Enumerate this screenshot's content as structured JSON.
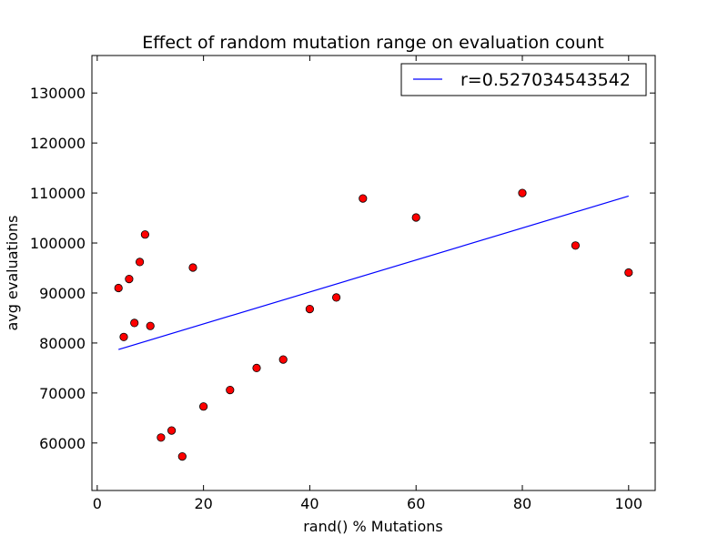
{
  "chart_data": {
    "type": "scatter",
    "title": "Effect of random mutation range on evaluation count",
    "xlabel": "rand() % Mutations",
    "ylabel": "avg evaluations",
    "xlim": [
      -1,
      105
    ],
    "ylim": [
      50500,
      137500
    ],
    "xticks": [
      0,
      20,
      40,
      60,
      80,
      100
    ],
    "yticks": [
      60000,
      70000,
      80000,
      90000,
      100000,
      110000,
      120000,
      130000
    ],
    "grid": false,
    "legend_position": "top-right",
    "series": [
      {
        "kind": "points",
        "marker_color": "#ff0000",
        "points": [
          {
            "x": 4,
            "y": 91000
          },
          {
            "x": 5,
            "y": 81200
          },
          {
            "x": 6,
            "y": 92800
          },
          {
            "x": 7,
            "y": 84000
          },
          {
            "x": 8,
            "y": 96200
          },
          {
            "x": 9,
            "y": 101700
          },
          {
            "x": 10,
            "y": 83400
          },
          {
            "x": 12,
            "y": 61100
          },
          {
            "x": 14,
            "y": 62500
          },
          {
            "x": 16,
            "y": 57300
          },
          {
            "x": 18,
            "y": 95100
          },
          {
            "x": 20,
            "y": 67300
          },
          {
            "x": 25,
            "y": 70600
          },
          {
            "x": 30,
            "y": 75000
          },
          {
            "x": 35,
            "y": 76700
          },
          {
            "x": 40,
            "y": 86800
          },
          {
            "x": 45,
            "y": 89100
          },
          {
            "x": 50,
            "y": 108900
          },
          {
            "x": 60,
            "y": 105100
          },
          {
            "x": 80,
            "y": 110000
          },
          {
            "x": 90,
            "y": 99500
          },
          {
            "x": 100,
            "y": 94100
          }
        ]
      },
      {
        "kind": "line",
        "name": "r=0.527034543542",
        "color": "#0000ff",
        "points": [
          {
            "x": 4,
            "y": 78700
          },
          {
            "x": 100,
            "y": 109400
          }
        ]
      }
    ]
  }
}
